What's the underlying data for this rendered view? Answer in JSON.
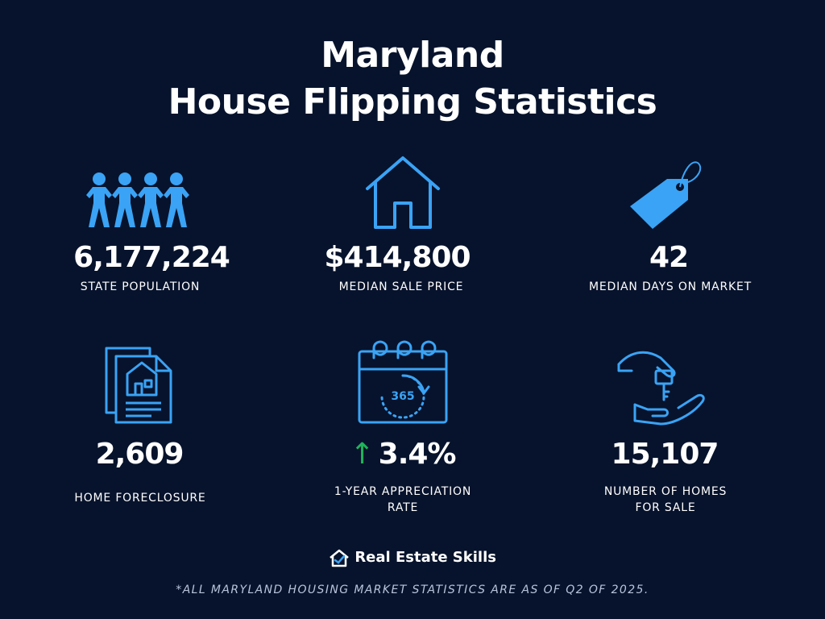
{
  "title": {
    "line1": "Maryland",
    "line2": "House Flipping Statistics"
  },
  "stats": [
    {
      "value": "6,177,224",
      "label": "STATE POPULATION",
      "icon": "people-icon"
    },
    {
      "value": "$414,800",
      "label": "MEDIAN SALE PRICE",
      "icon": "house-icon"
    },
    {
      "value": "42",
      "label": "MEDIAN DAYS ON MARKET",
      "icon": "price-tag-icon"
    },
    {
      "value": "2,609",
      "label": "HOME FORECLOSURE",
      "icon": "foreclosure-document-icon"
    },
    {
      "value": "3.4%",
      "label_line1": "1-YEAR APPRECIATION",
      "label_line2": "RATE",
      "icon": "calendar-365-icon",
      "trend": "up",
      "trend_color": "#1fb45a"
    },
    {
      "value": "15,107",
      "label_line1": "NUMBER OF HOMES",
      "label_line2": "FOR SALE",
      "icon": "house-key-handover-icon"
    }
  ],
  "calendar_text": "365",
  "brand": {
    "name": "Real Estate Skills",
    "icon": "house-check-logo-icon"
  },
  "footnote": "*ALL MARYLAND HOUSING MARKET STATISTICS ARE AS OF  Q2 OF 2025.",
  "colors": {
    "background": "#07132c",
    "accent": "#3aa3f5",
    "text": "#ffffff",
    "trend_up": "#1fb45a"
  }
}
